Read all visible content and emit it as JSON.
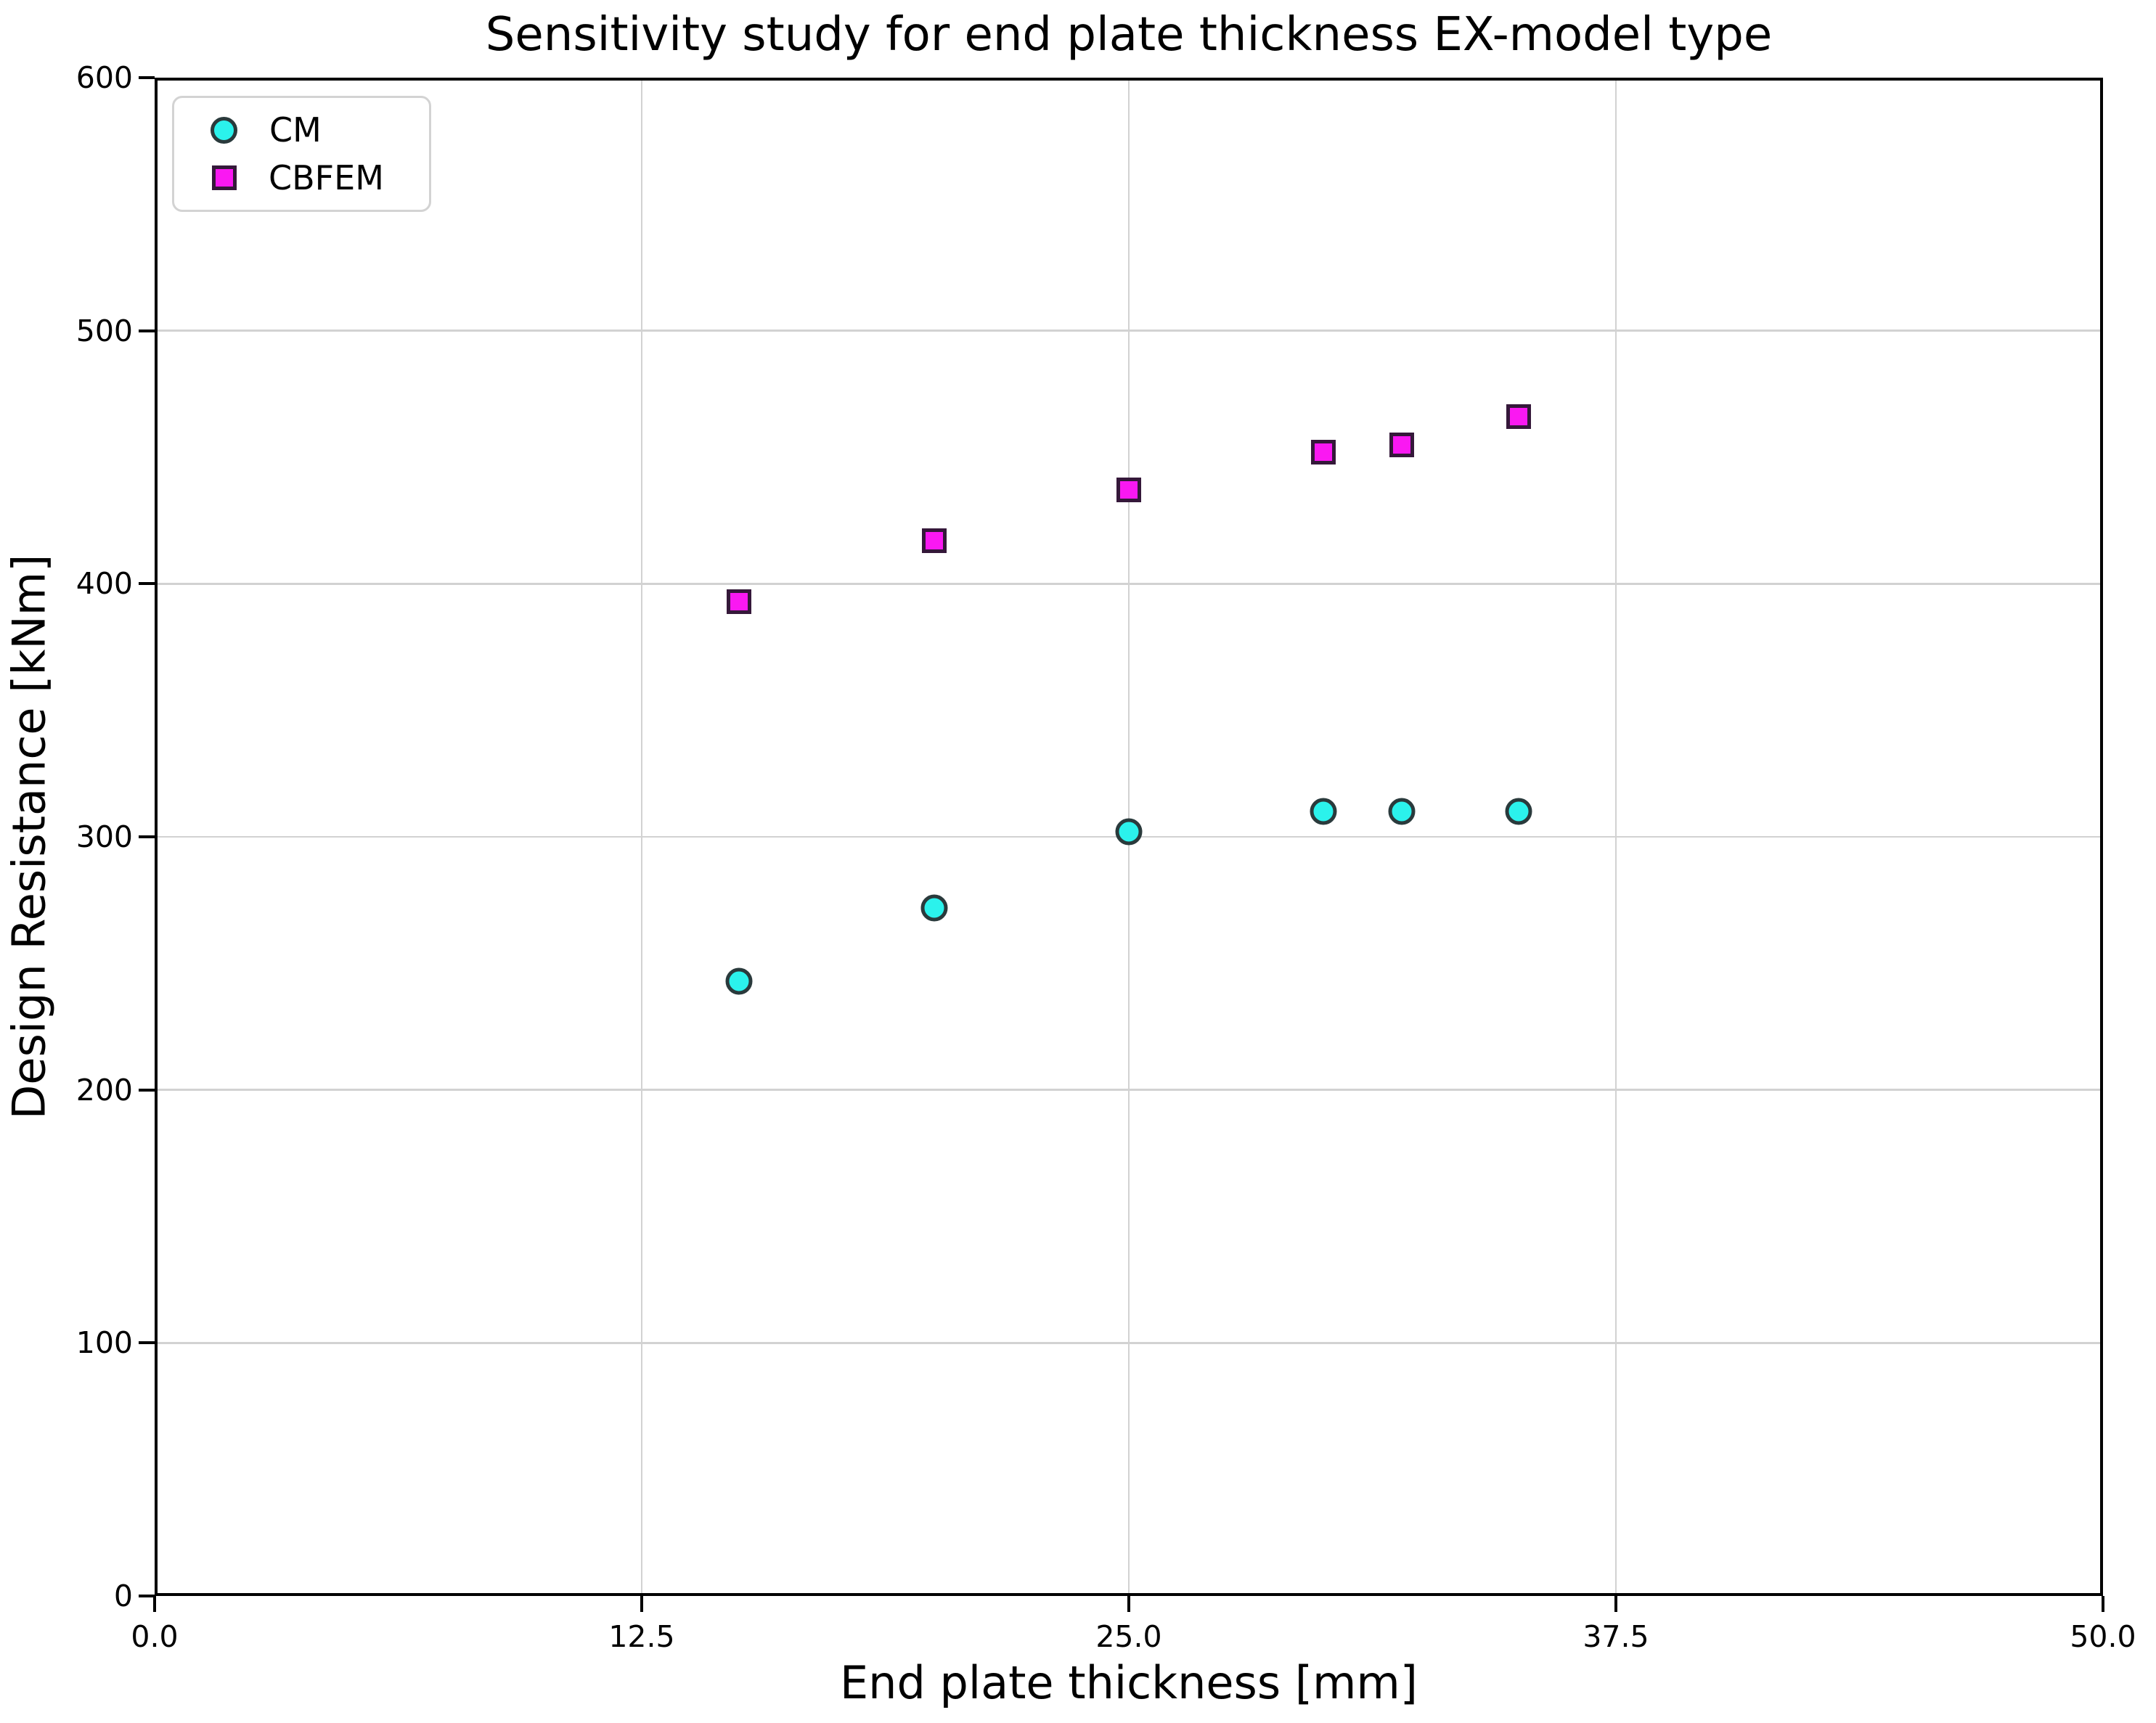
{
  "figure": {
    "background": "#FFFFFF"
  },
  "chart_data": {
    "type": "scatter",
    "title": "Sensitivity study for end plate thickness EX-model type",
    "xlabel": "End plate thickness [mm]",
    "ylabel": "Design Resistance [kNm]",
    "xlim": [
      0,
      50
    ],
    "ylim": [
      0,
      600
    ],
    "xtick_values": [
      0,
      12.5,
      25,
      37.5,
      50
    ],
    "xtick_labels": [
      "0.0",
      "12.5",
      "25.0",
      "37.5",
      "50.0"
    ],
    "ytick_values": [
      0,
      100,
      200,
      300,
      400,
      500,
      600
    ],
    "ytick_labels": [
      "0",
      "100",
      "200",
      "300",
      "400",
      "500",
      "600"
    ],
    "grid": true,
    "grid_color": "#D2D2D2",
    "spine_color": "#000000",
    "legend": {
      "position": "upper left",
      "border_color": "#D3D3D3"
    },
    "series": [
      {
        "name": "CM",
        "marker": "circle",
        "fill": "#2BF2EC",
        "edge": "#2A3A3C",
        "x": [
          15,
          20,
          25,
          30,
          32,
          35
        ],
        "y": [
          243,
          272,
          302,
          310,
          310,
          310
        ]
      },
      {
        "name": "CBFEM",
        "marker": "square",
        "fill": "#FA18F2",
        "edge": "#35183A",
        "x": [
          15,
          20,
          25,
          30,
          32,
          35
        ],
        "y": [
          393,
          417,
          437,
          452,
          455,
          466
        ]
      }
    ]
  }
}
